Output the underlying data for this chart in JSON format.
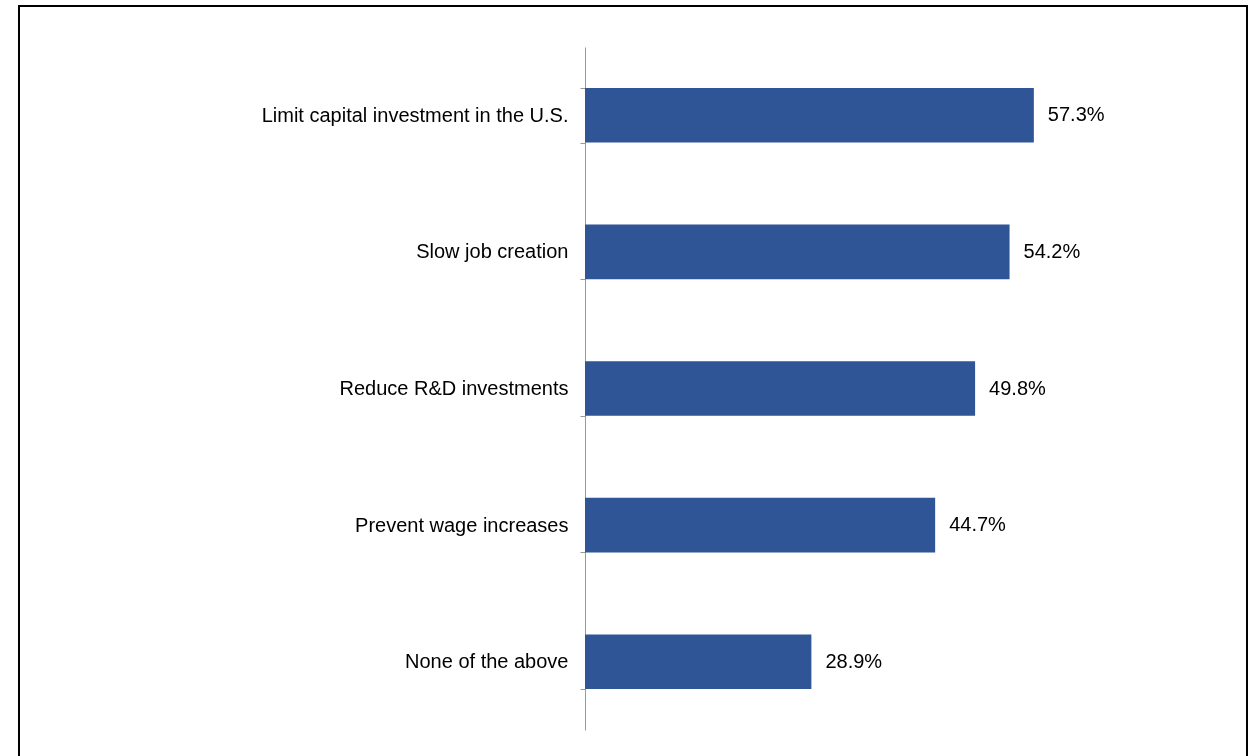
{
  "chart_data": {
    "type": "bar",
    "orientation": "horizontal",
    "categories": [
      "Limit capital investment in the U.S.",
      "Slow job creation",
      "Reduce R&D investments",
      "Prevent wage increases",
      "None of the above"
    ],
    "values": [
      57.3,
      54.2,
      49.8,
      44.7,
      28.9
    ],
    "value_labels": [
      "57.3%",
      "54.2%",
      "49.8%",
      "44.7%",
      "28.9%"
    ],
    "color": "#2f5597"
  }
}
